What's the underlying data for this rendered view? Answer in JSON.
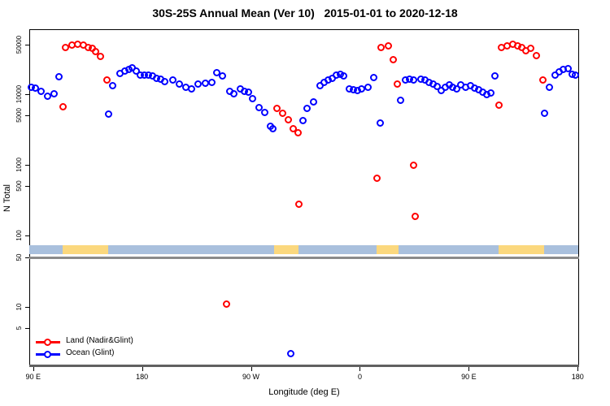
{
  "title": "30S-25S Annual Mean (Ver 10)   2015-01-01 to 2020-12-18",
  "axes": {
    "ylabel": "N Total",
    "xlabel": "Longitude (deg E)"
  },
  "legend": {
    "items": [
      {
        "label": "Land (Nadir&Glint)",
        "color": "#ff0000"
      },
      {
        "label": "Ocean (Glint)",
        "color": "#0000ff"
      }
    ]
  },
  "colors": {
    "land_series": "#ff0000",
    "ocean_series": "#0000ff",
    "strip_ocean": "#a9c0dd",
    "strip_land": "#fbd87e",
    "reference_line": "#8a8a8a",
    "axis_base": "#606060",
    "background": "#ffffff"
  },
  "chart_data": {
    "type": "scatter",
    "title": "30S-25S Annual Mean (Ver 10)   2015-01-01 to 2020-12-18",
    "xlabel": "Longitude (deg E)",
    "ylabel": "N Total",
    "y_scale": "log10",
    "ylim": [
      1.4,
      82500
    ],
    "xlim_display_deg": [
      86.8,
      540.5
    ],
    "x_axis_note": "longitude axis wraps: 90E to 180 to 90W to 0 to 90E to 180",
    "x_ticks": [
      {
        "deg": 90,
        "label": "90 E"
      },
      {
        "deg": 180,
        "label": "180"
      },
      {
        "deg": 270,
        "label": "90 W"
      },
      {
        "deg": 360,
        "label": "0"
      },
      {
        "deg": 450,
        "label": "90 E"
      },
      {
        "deg": 540,
        "label": "180"
      }
    ],
    "y_ticks": [
      {
        "value": 50000,
        "label": "50000"
      },
      {
        "value": 10000,
        "label": "10000"
      },
      {
        "value": 5000,
        "label": "5000"
      },
      {
        "value": 1000,
        "label": "1000"
      },
      {
        "value": 500,
        "label": "500"
      },
      {
        "value": 100,
        "label": "100"
      },
      {
        "value": 50,
        "label": "50"
      },
      {
        "value": 10,
        "label": "10"
      },
      {
        "value": 5,
        "label": "5"
      }
    ],
    "reference_line_value": 50,
    "land_ocean_strip": {
      "value_band": [
        55,
        74
      ],
      "ocean_span_deg": [
        86.8,
        540.5
      ],
      "land_segments_deg": [
        [
          114.5,
          152.0
        ],
        [
          289.0,
          309.5
        ],
        [
          373.5,
          392.0
        ],
        [
          474.5,
          512.5
        ]
      ]
    },
    "series": [
      {
        "name": "Ocean (Glint)",
        "color": "#0000ff",
        "marker": "open-circle",
        "points": [
          [
            88.3,
            12800
          ],
          [
            91.5,
            12300
          ],
          [
            96.2,
            11000
          ],
          [
            101.6,
            9400
          ],
          [
            107.0,
            10300
          ],
          [
            111.0,
            18000
          ],
          [
            152.0,
            5300
          ],
          [
            155.4,
            13400
          ],
          [
            161.4,
            19800
          ],
          [
            165.5,
            21500
          ],
          [
            168.8,
            22600
          ],
          [
            171.5,
            23900
          ],
          [
            174.9,
            21500
          ],
          [
            178.2,
            19000
          ],
          [
            181.6,
            18700
          ],
          [
            185.0,
            19000
          ],
          [
            188.3,
            18300
          ],
          [
            191.7,
            16800
          ],
          [
            195.0,
            16400
          ],
          [
            198.4,
            15400
          ],
          [
            205.1,
            15900
          ],
          [
            210.5,
            14100
          ],
          [
            215.9,
            12600
          ],
          [
            220.6,
            11900
          ],
          [
            225.9,
            14100
          ],
          [
            232.0,
            14500
          ],
          [
            237.4,
            15000
          ],
          [
            241.4,
            20400
          ],
          [
            246.1,
            18400
          ],
          [
            252.1,
            11000
          ],
          [
            255.5,
            10300
          ],
          [
            260.9,
            12100
          ],
          [
            264.2,
            11000
          ],
          [
            267.6,
            10800
          ],
          [
            270.9,
            8700
          ],
          [
            276.3,
            6500
          ],
          [
            281.0,
            5600
          ],
          [
            285.7,
            3550
          ],
          [
            287.7,
            3300
          ],
          [
            302.5,
            2.2
          ],
          [
            312.6,
            4300
          ],
          [
            316.0,
            6400
          ],
          [
            321.3,
            7900
          ],
          [
            326.7,
            13400
          ],
          [
            330.1,
            14900
          ],
          [
            333.4,
            15900
          ],
          [
            336.8,
            16700
          ],
          [
            340.1,
            19000
          ],
          [
            343.5,
            19500
          ],
          [
            346.2,
            18400
          ],
          [
            350.9,
            12100
          ],
          [
            354.2,
            11700
          ],
          [
            357.6,
            11400
          ],
          [
            361.0,
            12100
          ],
          [
            366.3,
            12600
          ],
          [
            371.0,
            17400
          ],
          [
            376.4,
            3950
          ],
          [
            393.2,
            8300
          ],
          [
            397.2,
            15900
          ],
          [
            400.6,
            16300
          ],
          [
            404.0,
            15900
          ],
          [
            410.0,
            16300
          ],
          [
            413.4,
            15900
          ],
          [
            416.7,
            15000
          ],
          [
            420.0,
            14100
          ],
          [
            423.4,
            13000
          ],
          [
            426.8,
            11400
          ],
          [
            430.1,
            12800
          ],
          [
            433.5,
            13800
          ],
          [
            436.2,
            12600
          ],
          [
            439.6,
            11900
          ],
          [
            442.9,
            13800
          ],
          [
            447.0,
            12600
          ],
          [
            451.0,
            13400
          ],
          [
            454.4,
            12300
          ],
          [
            457.7,
            11700
          ],
          [
            461.1,
            10800
          ],
          [
            464.4,
            9900
          ],
          [
            467.8,
            10500
          ],
          [
            471.1,
            18300
          ],
          [
            512.2,
            5450
          ],
          [
            516.2,
            12600
          ],
          [
            520.9,
            19000
          ],
          [
            524.2,
            21000
          ],
          [
            527.6,
            22600
          ],
          [
            531.6,
            23200
          ],
          [
            535.0,
            19500
          ],
          [
            537.7,
            18900
          ]
        ]
      },
      {
        "name": "Land (Nadir&Glint)",
        "color": "#ff0000",
        "marker": "open-circle",
        "points": [
          [
            114.4,
            6700
          ],
          [
            116.4,
            46000
          ],
          [
            121.8,
            50000
          ],
          [
            126.5,
            51000
          ],
          [
            131.2,
            50000
          ],
          [
            135.2,
            46000
          ],
          [
            138.6,
            45000
          ],
          [
            141.3,
            40500
          ],
          [
            145.3,
            34400
          ],
          [
            150.7,
            15900
          ],
          [
            249.4,
            11
          ],
          [
            291.0,
            6400
          ],
          [
            295.7,
            5450
          ],
          [
            300.4,
            4400
          ],
          [
            304.8,
            3300
          ],
          [
            308.3,
            2900
          ],
          [
            309.2,
            280
          ],
          [
            373.8,
            660
          ],
          [
            377.1,
            46000
          ],
          [
            383.2,
            48700
          ],
          [
            387.2,
            31000
          ],
          [
            390.6,
            14100
          ],
          [
            404.0,
            1000
          ],
          [
            405.5,
            190
          ],
          [
            474.6,
            7100
          ],
          [
            476.8,
            46000
          ],
          [
            481.3,
            49000
          ],
          [
            486.0,
            51000
          ],
          [
            489.8,
            49000
          ],
          [
            493.2,
            46000
          ],
          [
            496.5,
            41000
          ],
          [
            500.8,
            45000
          ],
          [
            505.4,
            35500
          ],
          [
            510.8,
            15900
          ]
        ]
      }
    ]
  }
}
